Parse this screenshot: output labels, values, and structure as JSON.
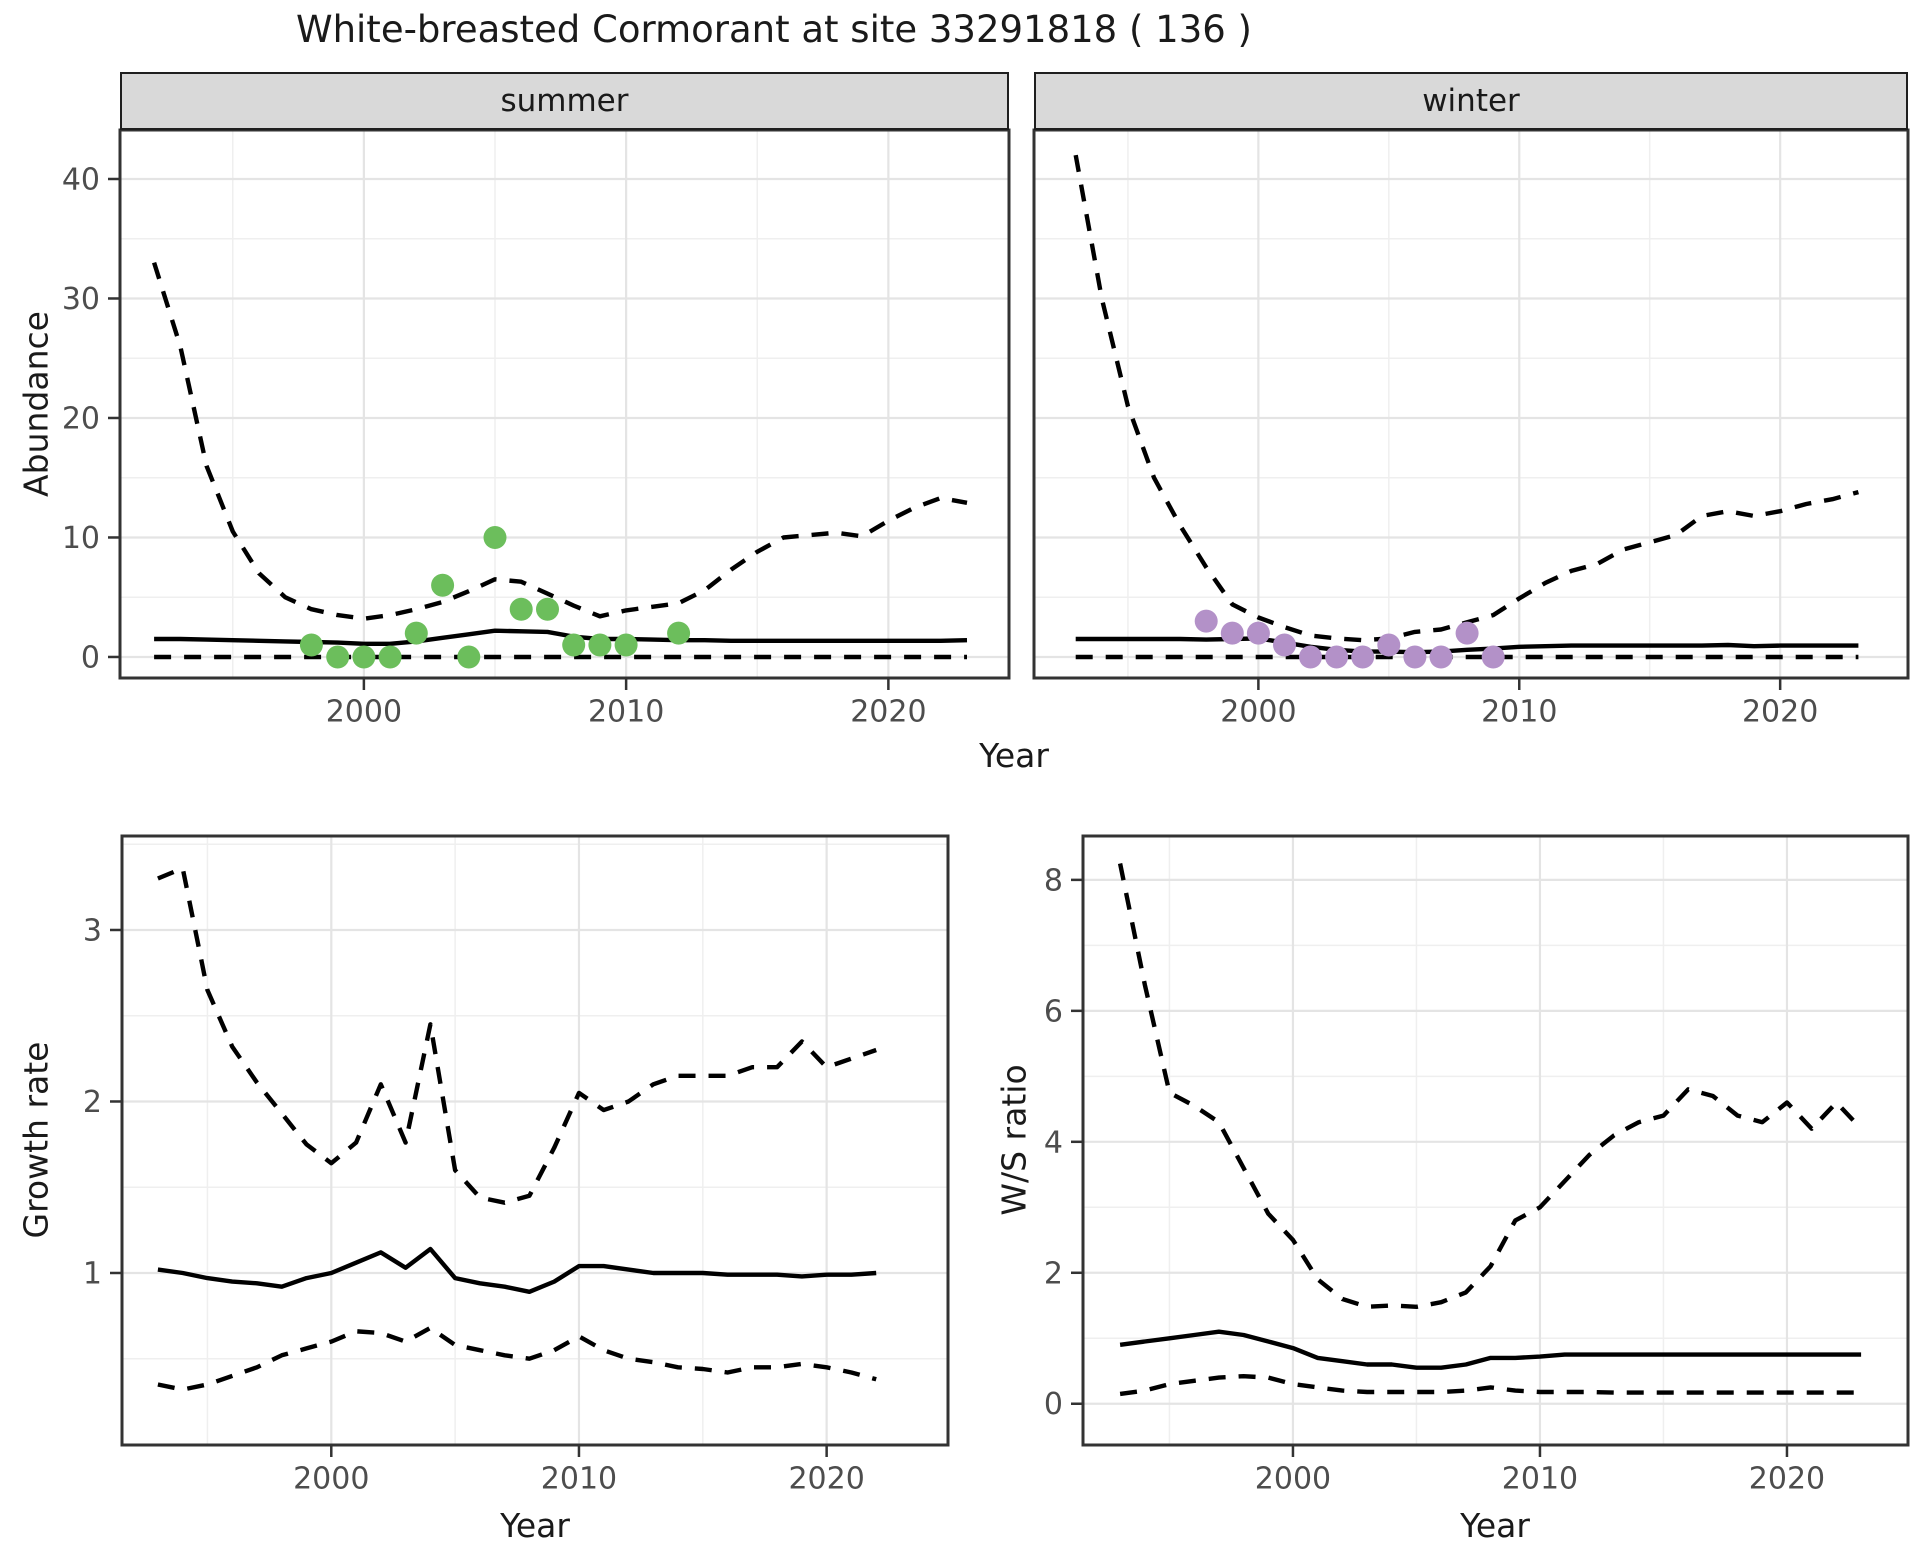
{
  "title": "White-breasted Cormorant at site 33291818 ( 136 )",
  "facets": {
    "summer_label": "summer",
    "winter_label": "winter"
  },
  "axis_labels": {
    "abundance": "Abundance",
    "year_top": "Year",
    "growth_rate": "Growth rate",
    "ws_ratio": "W/S ratio",
    "year_growth": "Year",
    "year_ws": "Year"
  },
  "colors": {
    "summer_points": "#6cbe5c",
    "winter_points": "#b391c8",
    "line": "#000000",
    "strip_bg": "#d9d9d9",
    "panel_bg": "#ffffff",
    "panel_border": "#333333",
    "grid_major": "#e4e4e4",
    "grid_minor": "#efefef",
    "axis_text": "#4d4d4d",
    "tick_mark": "#333333"
  },
  "chart_data": [
    {
      "id": "abundance-summer",
      "type": "line",
      "title": "summer",
      "xlabel": "Year",
      "ylabel": "Abundance",
      "x_ticks": [
        2000,
        2010,
        2020
      ],
      "y_ticks": [
        0,
        10,
        20,
        30,
        40
      ],
      "xlim": [
        1990.7,
        2024.6
      ],
      "ylim": [
        -1.76,
        44.1
      ],
      "grid": true,
      "years": [
        1992,
        1993,
        1994,
        1995,
        1996,
        1997,
        1998,
        1999,
        2000,
        2001,
        2002,
        2003,
        2004,
        2005,
        2006,
        2007,
        2008,
        2009,
        2010,
        2011,
        2012,
        2013,
        2014,
        2015,
        2016,
        2017,
        2018,
        2019,
        2020,
        2021,
        2022,
        2023
      ],
      "series": [
        {
          "name": "upper_ci",
          "style": "dashed",
          "values": [
            33,
            26,
            16,
            10.5,
            7,
            5,
            4,
            3.5,
            3.2,
            3.5,
            4.0,
            4.6,
            5.5,
            6.5,
            6.3,
            5.3,
            4.3,
            3.4,
            3.9,
            4.2,
            4.5,
            5.6,
            7.3,
            8.8,
            10,
            10.2,
            10.4,
            10.1,
            11.4,
            12.5,
            13.3,
            12.9
          ]
        },
        {
          "name": "median",
          "style": "solid",
          "values": [
            1.5,
            1.5,
            1.45,
            1.4,
            1.35,
            1.3,
            1.25,
            1.2,
            1.1,
            1.1,
            1.3,
            1.6,
            1.9,
            2.2,
            2.15,
            2.1,
            1.7,
            1.5,
            1.5,
            1.45,
            1.4,
            1.4,
            1.35,
            1.35,
            1.35,
            1.35,
            1.35,
            1.35,
            1.35,
            1.35,
            1.35,
            1.4
          ]
        },
        {
          "name": "lower_ci",
          "style": "dashed",
          "values": [
            0,
            0,
            0,
            0,
            0,
            0,
            0,
            0,
            0,
            0,
            0,
            0,
            0,
            0,
            0,
            0,
            0,
            0,
            0,
            0,
            0,
            0,
            0,
            0,
            0,
            0,
            0,
            0,
            0,
            0,
            0,
            0
          ]
        }
      ],
      "points": {
        "name": "observed-counts-summer",
        "color_key": "summer_points",
        "years": [
          1998,
          1999,
          2000,
          2001,
          2002,
          2003,
          2004,
          2005,
          2006,
          2007,
          2008,
          2009,
          2010,
          2012
        ],
        "values": [
          1,
          0,
          0,
          0,
          2,
          6,
          0,
          10,
          4,
          4,
          1,
          1,
          1,
          2
        ]
      }
    },
    {
      "id": "abundance-winter",
      "type": "line",
      "title": "winter",
      "xlabel": "Year",
      "ylabel": "Abundance",
      "x_ticks": [
        2000,
        2010,
        2020
      ],
      "y_ticks": [
        0,
        10,
        20,
        30,
        40
      ],
      "xlim": [
        1991.4,
        2024.9
      ],
      "ylim": [
        -1.76,
        44.1
      ],
      "grid": true,
      "years": [
        1993,
        1994,
        1995,
        1996,
        1997,
        1998,
        1999,
        2000,
        2001,
        2002,
        2003,
        2004,
        2005,
        2006,
        2007,
        2008,
        2009,
        2010,
        2011,
        2012,
        2013,
        2014,
        2015,
        2016,
        2017,
        2018,
        2019,
        2020,
        2021,
        2022,
        2023
      ],
      "series": [
        {
          "name": "upper_ci",
          "style": "dashed",
          "values": [
            42,
            30,
            21,
            15,
            11,
            7.5,
            4.4,
            3.3,
            2.5,
            1.8,
            1.55,
            1.4,
            1.55,
            2.1,
            2.3,
            2.9,
            3.5,
            4.9,
            6.2,
            7.2,
            7.8,
            9.0,
            9.6,
            10.2,
            11.8,
            12.2,
            11.8,
            12.2,
            12.8,
            13.2,
            13.8
          ]
        },
        {
          "name": "median",
          "style": "solid",
          "values": [
            1.5,
            1.5,
            1.5,
            1.5,
            1.5,
            1.45,
            1.5,
            1.55,
            1.2,
            0.85,
            0.6,
            0.45,
            0.45,
            0.4,
            0.45,
            0.6,
            0.7,
            0.85,
            0.9,
            0.95,
            0.95,
            0.95,
            0.95,
            0.95,
            0.95,
            1.0,
            0.9,
            0.95,
            0.95,
            0.95,
            0.95
          ]
        },
        {
          "name": "lower_ci",
          "style": "dashed",
          "values": [
            0,
            0,
            0,
            0,
            0,
            0,
            0,
            0,
            0,
            0,
            0,
            0,
            0,
            0,
            0,
            0,
            0,
            0,
            0,
            0,
            0,
            0,
            0,
            0,
            0,
            0,
            0,
            0,
            0,
            0,
            0
          ]
        }
      ],
      "points": {
        "name": "observed-counts-winter",
        "color_key": "winter_points",
        "years": [
          1998,
          1999,
          2000,
          2001,
          2002,
          2003,
          2004,
          2005,
          2006,
          2007,
          2008,
          2009
        ],
        "values": [
          3,
          2,
          2,
          1,
          0,
          0,
          0,
          1,
          0,
          0,
          2,
          0
        ]
      }
    },
    {
      "id": "growth-rate",
      "type": "line",
      "title": "",
      "xlabel": "Year",
      "ylabel": "Growth rate",
      "x_ticks": [
        2000,
        2010,
        2020
      ],
      "y_ticks": [
        1,
        2,
        3
      ],
      "xlim": [
        1991.55,
        2024.9
      ],
      "ylim": [
        -0.003,
        3.548
      ],
      "grid": true,
      "years": [
        1993,
        1994,
        1995,
        1996,
        1997,
        1998,
        1999,
        2000,
        2001,
        2002,
        2003,
        2004,
        2005,
        2006,
        2007,
        2008,
        2009,
        2010,
        2011,
        2012,
        2013,
        2014,
        2015,
        2016,
        2017,
        2018,
        2019,
        2020,
        2021,
        2022
      ],
      "series": [
        {
          "name": "upper_ci",
          "style": "dashed",
          "values": [
            3.3,
            3.36,
            2.65,
            2.32,
            2.11,
            1.93,
            1.75,
            1.64,
            1.76,
            2.1,
            1.76,
            2.45,
            1.6,
            1.44,
            1.41,
            1.45,
            1.73,
            2.05,
            1.95,
            2.0,
            2.1,
            2.15,
            2.15,
            2.15,
            2.2,
            2.2,
            2.35,
            2.2,
            2.25,
            2.3
          ]
        },
        {
          "name": "median",
          "style": "solid",
          "values": [
            1.02,
            1.0,
            0.97,
            0.95,
            0.94,
            0.92,
            0.97,
            1.0,
            1.06,
            1.12,
            1.03,
            1.14,
            0.97,
            0.94,
            0.92,
            0.89,
            0.95,
            1.04,
            1.04,
            1.02,
            1.0,
            1.0,
            1.0,
            0.99,
            0.99,
            0.99,
            0.98,
            0.99,
            0.99,
            1.0
          ]
        },
        {
          "name": "lower_ci",
          "style": "dashed",
          "values": [
            0.35,
            0.32,
            0.35,
            0.4,
            0.45,
            0.52,
            0.56,
            0.6,
            0.66,
            0.65,
            0.6,
            0.68,
            0.58,
            0.55,
            0.52,
            0.5,
            0.55,
            0.63,
            0.55,
            0.5,
            0.48,
            0.45,
            0.44,
            0.42,
            0.45,
            0.45,
            0.47,
            0.45,
            0.42,
            0.38
          ]
        }
      ],
      "points": null
    },
    {
      "id": "ws-ratio",
      "type": "line",
      "title": "",
      "xlabel": "Year",
      "ylabel": "W/S ratio",
      "x_ticks": [
        2000,
        2010,
        2020
      ],
      "y_ticks": [
        0,
        2,
        4,
        6,
        8
      ],
      "xlim": [
        1991.5,
        2024.9
      ],
      "ylim": [
        -0.63,
        8.67
      ],
      "grid": true,
      "years": [
        1993,
        1994,
        1995,
        1996,
        1997,
        1998,
        1999,
        2000,
        2001,
        2002,
        2003,
        2004,
        2005,
        2006,
        2007,
        2008,
        2009,
        2010,
        2011,
        2012,
        2013,
        2014,
        2015,
        2016,
        2017,
        2018,
        2019,
        2020,
        2021,
        2022,
        2023
      ],
      "series": [
        {
          "name": "upper_ci",
          "style": "dashed",
          "values": [
            8.25,
            6.4,
            4.75,
            4.55,
            4.3,
            3.6,
            2.9,
            2.5,
            1.9,
            1.6,
            1.48,
            1.5,
            1.48,
            1.55,
            1.7,
            2.1,
            2.8,
            3.0,
            3.4,
            3.8,
            4.1,
            4.3,
            4.4,
            4.8,
            4.7,
            4.4,
            4.3,
            4.6,
            4.2,
            4.6,
            4.2
          ]
        },
        {
          "name": "median",
          "style": "solid",
          "values": [
            0.9,
            0.95,
            1.0,
            1.05,
            1.1,
            1.05,
            0.95,
            0.85,
            0.7,
            0.65,
            0.6,
            0.6,
            0.55,
            0.55,
            0.6,
            0.7,
            0.7,
            0.72,
            0.75,
            0.75,
            0.75,
            0.75,
            0.75,
            0.75,
            0.75,
            0.75,
            0.75,
            0.75,
            0.75,
            0.75,
            0.75
          ]
        },
        {
          "name": "lower_ci",
          "style": "dashed",
          "values": [
            0.15,
            0.2,
            0.3,
            0.35,
            0.4,
            0.42,
            0.4,
            0.3,
            0.25,
            0.2,
            0.18,
            0.18,
            0.18,
            0.18,
            0.2,
            0.25,
            0.2,
            0.18,
            0.18,
            0.18,
            0.17,
            0.17,
            0.17,
            0.17,
            0.17,
            0.17,
            0.17,
            0.17,
            0.17,
            0.17,
            0.17
          ]
        }
      ],
      "points": null
    }
  ]
}
